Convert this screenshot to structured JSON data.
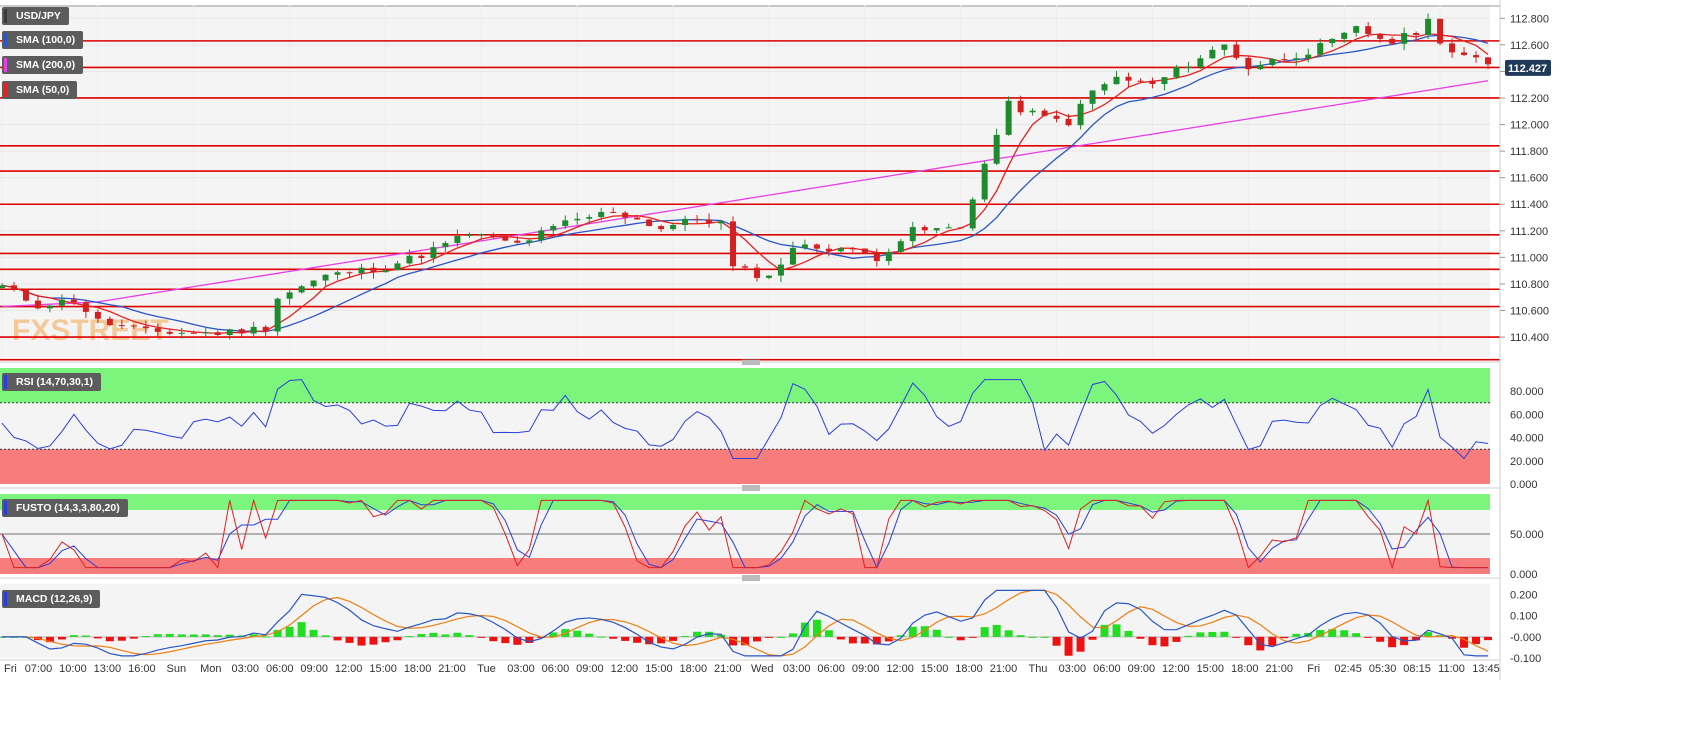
{
  "chart_data": [
    {
      "type": "candlestick",
      "symbol": "USD/JPY",
      "last_price": "112.427",
      "ylim": [
        110.25,
        112.9
      ],
      "y_ticks": [
        "112.800",
        "112.600",
        "112.400",
        "112.200",
        "112.000",
        "111.800",
        "111.600",
        "111.400",
        "111.200",
        "111.000",
        "110.800",
        "110.600",
        "110.400"
      ],
      "x_ticks": [
        "Fri",
        "07:00",
        "10:00",
        "13:00",
        "16:00",
        "Sun",
        "Mon",
        "03:00",
        "06:00",
        "09:00",
        "12:00",
        "15:00",
        "18:00",
        "21:00",
        "Tue",
        "03:00",
        "06:00",
        "09:00",
        "12:00",
        "15:00",
        "18:00",
        "21:00",
        "Wed",
        "03:00",
        "06:00",
        "09:00",
        "12:00",
        "15:00",
        "18:00",
        "21:00",
        "Thu",
        "03:00",
        "06:00",
        "09:00",
        "12:00",
        "15:00",
        "18:00",
        "21:00",
        "Fri",
        "02:45",
        "05:30",
        "08:15",
        "11:00",
        "13:45"
      ],
      "horizontal_levels": [
        112.63,
        112.43,
        112.2,
        111.84,
        111.65,
        111.4,
        111.17,
        111.03,
        110.91,
        110.76,
        110.63,
        110.4,
        110.23
      ],
      "price_path": [
        [
          0,
          110.78
        ],
        [
          3,
          110.64
        ],
        [
          6,
          110.68
        ],
        [
          8,
          110.52
        ],
        [
          12,
          110.44
        ],
        [
          18,
          110.43
        ],
        [
          22,
          110.47
        ],
        [
          23,
          110.7
        ],
        [
          27,
          110.86
        ],
        [
          32,
          110.93
        ],
        [
          35,
          111.02
        ],
        [
          39,
          111.18
        ],
        [
          43,
          111.1
        ],
        [
          47,
          111.26
        ],
        [
          51,
          111.35
        ],
        [
          55,
          111.22
        ],
        [
          58,
          111.29
        ],
        [
          60,
          111.26
        ],
        [
          61,
          110.92
        ],
        [
          64,
          110.85
        ],
        [
          66,
          111.08
        ],
        [
          70,
          111.07
        ],
        [
          73,
          111.0
        ],
        [
          76,
          111.2
        ],
        [
          80,
          111.22
        ],
        [
          82,
          111.7
        ],
        [
          84,
          112.15
        ],
        [
          87,
          112.05
        ],
        [
          89,
          112.02
        ],
        [
          91,
          112.25
        ],
        [
          93,
          112.35
        ],
        [
          96,
          112.3
        ],
        [
          99,
          112.46
        ],
        [
          102,
          112.6
        ],
        [
          104,
          112.43
        ],
        [
          106,
          112.48
        ],
        [
          109,
          112.55
        ],
        [
          111,
          112.62
        ],
        [
          113,
          112.72
        ],
        [
          116,
          112.62
        ],
        [
          118,
          112.7
        ],
        [
          119,
          112.78
        ],
        [
          120,
          112.64
        ],
        [
          121,
          112.55
        ],
        [
          123,
          112.48
        ],
        [
          124,
          112.44
        ]
      ],
      "indicators": {
        "sma_100_label": "SMA (100,0)",
        "sma_200_label": "SMA (200,0)",
        "sma_50_label": "SMA (50,0)",
        "sma_100_color": "#2a56c6",
        "sma_200_color": "#e83ee8",
        "sma_50_color": "#e82020"
      },
      "watermark": "FXSTREET"
    },
    {
      "type": "line",
      "label": "RSI (14,70,30,1)",
      "ylim": [
        0,
        100
      ],
      "y_ticks": [
        "80.000",
        "60.000",
        "40.000",
        "20.000",
        "0.000"
      ],
      "overbought": 70,
      "oversold": 30
    },
    {
      "type": "line",
      "label": "FUSTO (14,3,3,80,20)",
      "ylim": [
        0,
        100
      ],
      "y_ticks": [
        "50.000",
        "0.000"
      ],
      "overbought": 80,
      "oversold": 20
    },
    {
      "type": "bar",
      "label": "MACD (12,26,9)",
      "ylim": [
        -0.1,
        0.25
      ],
      "y_ticks": [
        "0.200",
        "0.100",
        "-0.000",
        "-0.100"
      ]
    }
  ],
  "colors": {
    "bull": "#1e8b2f",
    "bear": "#d42020",
    "level_line": "#dd0000",
    "overbought_fill": "#7cf57c",
    "oversold_fill": "#f77c7c",
    "rsi_line": "#2a3ee0",
    "fusto_k": "#e02020",
    "fusto_d": "#2a3ee0",
    "macd_line": "#2a56c6",
    "macd_signal": "#f07d10",
    "hist_pos": "#22dd22",
    "hist_neg": "#ee1111",
    "price_badge": "#1f3a5a"
  }
}
